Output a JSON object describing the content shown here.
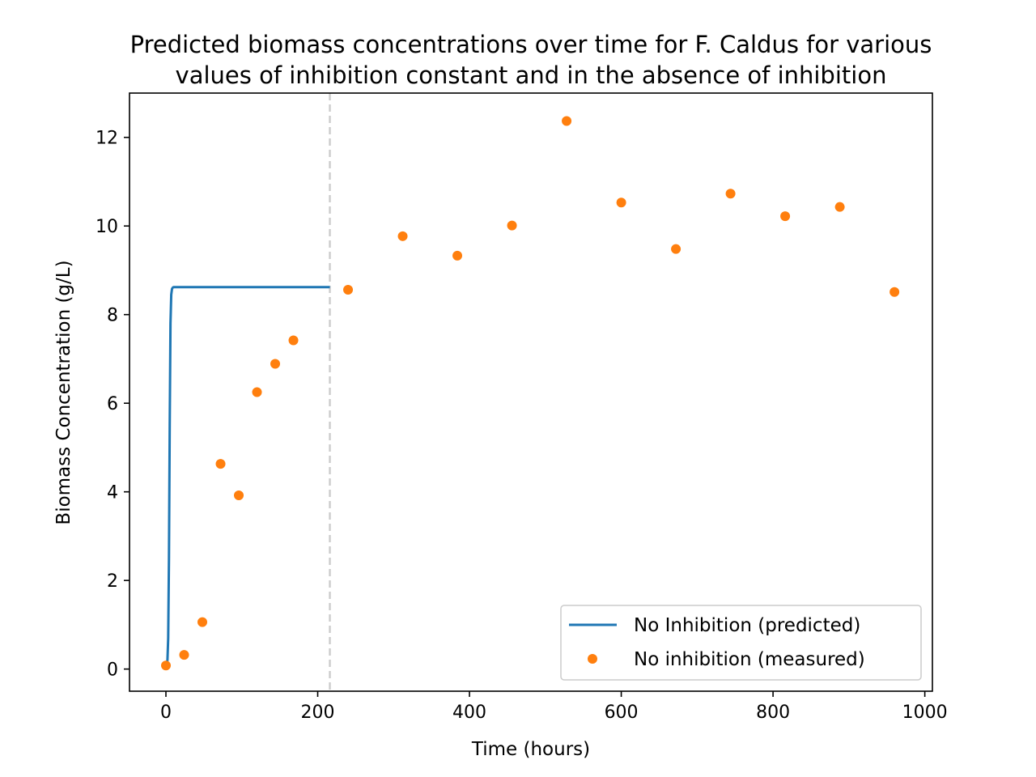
{
  "chart_data": {
    "type": "line",
    "title_lines": [
      "Predicted biomass concentrations over time for F. Caldus for various",
      "values of inhibition constant and in the absence of inhibition"
    ],
    "xlabel": "Time (hours)",
    "ylabel": "Biomass Concentration (g/L)",
    "xlim": [
      -48,
      1010
    ],
    "ylim": [
      -0.5,
      13.0
    ],
    "xticks": [
      0,
      200,
      400,
      600,
      800,
      1000
    ],
    "yticks": [
      0,
      2,
      4,
      6,
      8,
      10,
      12
    ],
    "grid": false,
    "legend_position": "lower-right",
    "vline": {
      "x": 216,
      "style": "dashed",
      "color": "#cccccc"
    },
    "series": [
      {
        "name": "No Inhibition (predicted)",
        "kind": "line",
        "color": "#1f77b4",
        "x": [
          0,
          1,
          2,
          3,
          4,
          5,
          6,
          7,
          8,
          9,
          10,
          12,
          216
        ],
        "y": [
          0.08,
          0.1,
          0.2,
          0.7,
          2.5,
          5.5,
          7.8,
          8.45,
          8.58,
          8.61,
          8.62,
          8.62,
          8.62
        ]
      },
      {
        "name": "No inhibition (measured)",
        "kind": "scatter",
        "color": "#ff7f0e",
        "x": [
          0,
          24,
          48,
          72,
          96,
          120,
          144,
          168,
          240,
          312,
          384,
          456,
          528,
          600,
          672,
          744,
          816,
          888,
          960
        ],
        "y": [
          0.08,
          0.32,
          1.06,
          4.63,
          3.92,
          6.25,
          6.89,
          7.42,
          8.56,
          9.77,
          9.33,
          10.01,
          12.37,
          10.53,
          9.48,
          10.73,
          10.22,
          10.43,
          8.51
        ]
      }
    ]
  }
}
